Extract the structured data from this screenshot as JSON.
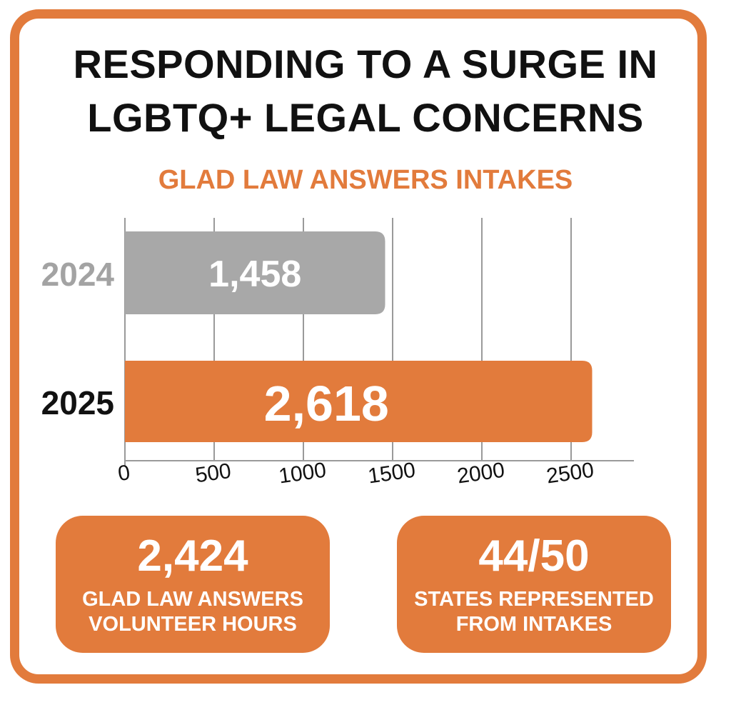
{
  "title_line1": "RESPONDING TO A SURGE IN",
  "title_line2": "LGBTQ+ LEGAL CONCERNS",
  "colors": {
    "accent": "#E27B3C",
    "gray": "#A8A8A8",
    "grid": "#9A9A9A"
  },
  "chart_data": {
    "type": "bar",
    "orientation": "horizontal",
    "title": "GLAD LAW ANSWERS INTAKES",
    "categories": [
      "2024",
      "2025"
    ],
    "values": [
      1458,
      2618
    ],
    "value_labels": [
      "1,458",
      "2,618"
    ],
    "xlim": [
      0,
      2500
    ],
    "x_ticks": [
      0,
      500,
      1000,
      1500,
      2000,
      2500
    ],
    "grid": true
  },
  "stats": [
    {
      "value": "2,424",
      "label_line1": "GLAD LAW ANSWERS",
      "label_line2": "VOLUNTEER HOURS"
    },
    {
      "value": "44/50",
      "label_line1": "STATES REPRESENTED",
      "label_line2": "FROM INTAKES"
    }
  ]
}
